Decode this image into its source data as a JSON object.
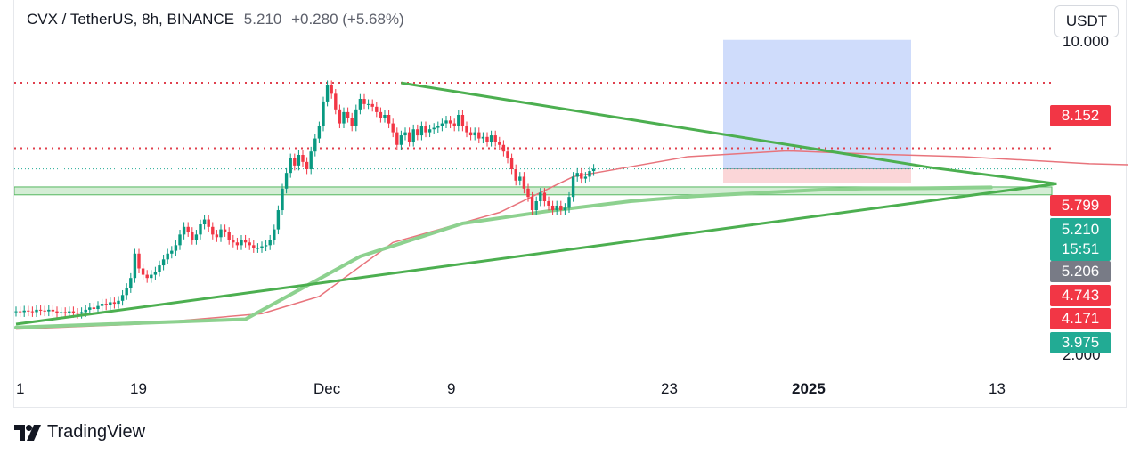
{
  "header": {
    "symbol": "CVX / TetherUS, 8h, BINANCE",
    "price": "5.210",
    "change": "+0.280 (+5.68%)"
  },
  "currency_button": "USDT",
  "brand": {
    "name": "TradingView",
    "logo_icon": "tradingview-logo-icon"
  },
  "axis": {
    "y_top_label": "10.000",
    "y_bottom_label": "2.000",
    "x_ticks": [
      {
        "label": "1",
        "bold": false
      },
      {
        "label": "19",
        "bold": false
      },
      {
        "label": "Dec",
        "bold": false
      },
      {
        "label": "9",
        "bold": false
      },
      {
        "label": "23",
        "bold": false
      },
      {
        "label": "2025",
        "bold": true
      },
      {
        "label": "13",
        "bold": false
      }
    ]
  },
  "price_tags": {
    "resistance_high": {
      "value": "8.152",
      "color": "#f23645"
    },
    "resistance_low": {
      "value": "5.799",
      "color": "#f23645"
    },
    "last_price": {
      "value": "5.210",
      "countdown": "15:51",
      "color": "#22ab94"
    },
    "ma_value": {
      "value": "5.206",
      "color": "#787b86"
    },
    "stop_1": {
      "value": "4.743",
      "color": "#f23645"
    },
    "stop_2": {
      "value": "4.171",
      "color": "#f23645"
    },
    "support": {
      "value": "3.975",
      "color": "#22ab94"
    }
  },
  "chart_data": {
    "type": "candlestick",
    "ylim": [
      2.0,
      10.0
    ],
    "scale": "log",
    "up_color": "#089981",
    "down_color": "#f23645",
    "closes": [
      2.48,
      2.47,
      2.49,
      2.48,
      2.47,
      2.5,
      2.49,
      2.48,
      2.5,
      2.48,
      2.46,
      2.47,
      2.46,
      2.48,
      2.46,
      2.45,
      2.47,
      2.5,
      2.53,
      2.51,
      2.55,
      2.58,
      2.56,
      2.6,
      2.58,
      2.62,
      2.7,
      2.8,
      2.95,
      3.35,
      3.1,
      3.0,
      2.95,
      3.0,
      3.05,
      3.15,
      3.25,
      3.35,
      3.4,
      3.5,
      3.7,
      3.85,
      3.75,
      3.6,
      3.7,
      3.9,
      4.0,
      3.85,
      3.7,
      3.65,
      3.8,
      3.75,
      3.6,
      3.55,
      3.5,
      3.6,
      3.55,
      3.5,
      3.45,
      3.45,
      3.48,
      3.5,
      3.6,
      3.8,
      4.2,
      4.7,
      5.1,
      5.5,
      5.3,
      5.6,
      5.4,
      5.2,
      5.7,
      6.1,
      6.5,
      7.4,
      8.05,
      7.7,
      7.1,
      6.6,
      7.0,
      6.8,
      6.5,
      7.1,
      7.5,
      7.3,
      7.3,
      7.2,
      7.0,
      6.8,
      6.9,
      6.6,
      6.3,
      5.9,
      6.2,
      6.3,
      6.0,
      6.4,
      6.2,
      6.5,
      6.3,
      6.4,
      6.45,
      6.5,
      6.6,
      6.7,
      6.6,
      6.5,
      6.9,
      6.5,
      6.3,
      6.2,
      6.3,
      6.1,
      6.15,
      6.0,
      6.2,
      6.0,
      5.9,
      5.7,
      5.5,
      5.2,
      4.9,
      5.0,
      4.7,
      4.5,
      4.2,
      4.4,
      4.6,
      4.4,
      4.3,
      4.2,
      4.3,
      4.2,
      4.25,
      4.5,
      5.0,
      5.1,
      4.95,
      5.0,
      5.15,
      5.21
    ],
    "ma_red_points": [
      [
        0,
        2.26
      ],
      [
        30,
        2.32
      ],
      [
        60,
        2.45
      ],
      [
        74,
        2.68
      ],
      [
        92,
        3.55
      ],
      [
        118,
        4.15
      ],
      [
        136,
        5.0
      ],
      [
        164,
        5.55
      ],
      [
        188,
        5.72
      ],
      [
        210,
        5.62
      ],
      [
        231,
        5.55
      ],
      [
        262,
        5.35
      ],
      [
        284,
        5.28
      ]
    ],
    "ma_green_points": [
      [
        0,
        2.28
      ],
      [
        56,
        2.38
      ],
      [
        84,
        3.3
      ],
      [
        109,
        3.92
      ],
      [
        130,
        4.18
      ],
      [
        150,
        4.4
      ],
      [
        166,
        4.52
      ],
      [
        176,
        4.57
      ],
      [
        196,
        4.67
      ],
      [
        207,
        4.7
      ],
      [
        222,
        4.71
      ],
      [
        238,
        4.73
      ]
    ],
    "trendline_resistance": [
      [
        94,
        8.15
      ],
      [
        223,
        5.25
      ],
      [
        254,
        4.82
      ]
    ],
    "trendline_support": [
      [
        0,
        2.32
      ],
      [
        254,
        4.82
      ]
    ],
    "horizontal_lines": [
      8.152,
      5.799
    ],
    "last_price_line": 5.21,
    "support_zone": [
      4.74,
      4.55
    ],
    "position": {
      "entry": 5.21,
      "target": 10.2,
      "stop": 4.84
    }
  }
}
